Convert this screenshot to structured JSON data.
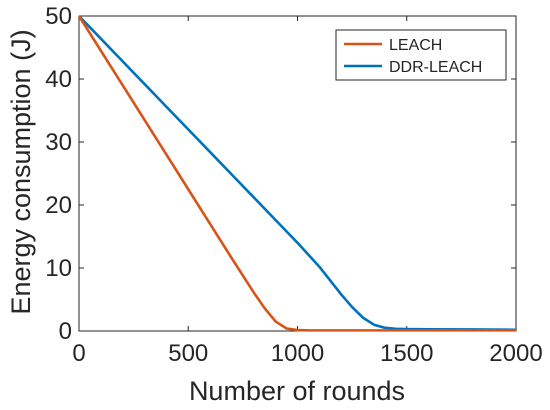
{
  "chart_data": {
    "type": "line",
    "title": "",
    "xlabel": "Number of rounds",
    "ylabel": "Energy consumption (J)",
    "xlim": [
      0,
      2000
    ],
    "ylim": [
      0,
      50
    ],
    "x_ticks": [
      0,
      500,
      1000,
      1500,
      2000
    ],
    "y_ticks": [
      0,
      10,
      20,
      30,
      40,
      50
    ],
    "x_tick_labels": [
      "0",
      "500",
      "1000",
      "1500",
      "2000"
    ],
    "y_tick_labels": [
      "0",
      "10",
      "20",
      "30",
      "40",
      "50"
    ],
    "grid": false,
    "legend": {
      "position": "top-right",
      "entries": [
        "LEACH",
        "DDR-LEACH"
      ]
    },
    "series": [
      {
        "name": "LEACH",
        "color": "#D95319",
        "x": [
          0,
          100,
          200,
          300,
          400,
          500,
          600,
          700,
          750,
          800,
          850,
          900,
          950,
          1000,
          1050,
          1100,
          1200,
          1300,
          1400,
          1500,
          1600,
          1800,
          2000
        ],
        "y": [
          50,
          44.5,
          39,
          33.5,
          28,
          22.5,
          17,
          11.5,
          8.8,
          6.1,
          3.6,
          1.5,
          0.4,
          0.15,
          0.1,
          0.1,
          0.1,
          0.1,
          0.1,
          0.1,
          0.1,
          0.1,
          0.1
        ]
      },
      {
        "name": "DDR-LEACH",
        "color": "#0072BD",
        "x": [
          0,
          100,
          200,
          300,
          400,
          500,
          600,
          700,
          800,
          900,
          1000,
          1100,
          1150,
          1200,
          1250,
          1300,
          1350,
          1400,
          1450,
          1500,
          1600,
          1800,
          2000
        ],
        "y": [
          50,
          46.4,
          42.8,
          39.2,
          35.6,
          32,
          28.4,
          24.8,
          21.2,
          17.6,
          14,
          10.2,
          8.0,
          5.8,
          3.8,
          2.1,
          1.0,
          0.5,
          0.35,
          0.3,
          0.28,
          0.25,
          0.2
        ]
      }
    ]
  }
}
